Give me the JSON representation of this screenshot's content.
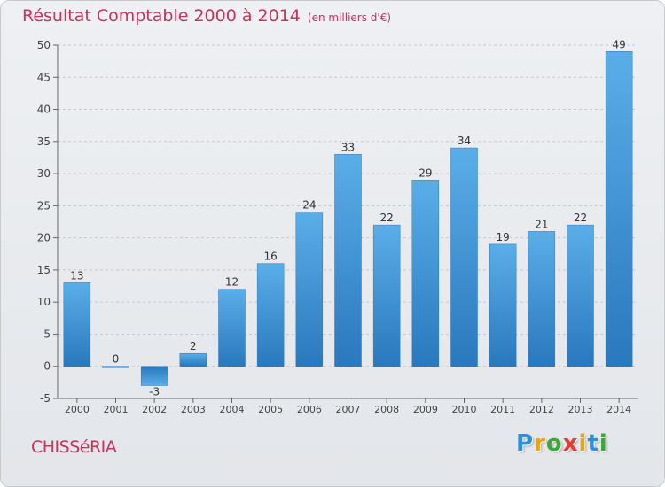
{
  "title": "Résultat Comptable 2000 à 2014",
  "unit": "(en milliers d'€)",
  "commune": "CHISSéRIA",
  "logo": {
    "letters": [
      "P",
      "r",
      "o",
      "x",
      "i",
      "t",
      "i"
    ],
    "colors": [
      "#2f8fd8",
      "#e9a31f",
      "#3aa832",
      "#e03c31",
      "#e9a31f",
      "#2f8fd8",
      "#3aa832"
    ]
  },
  "colors": {
    "bar": "#3d96d8",
    "bar_dark": "#2a78bd",
    "title": "#c7345a"
  },
  "chart_data": {
    "type": "bar",
    "title": "Résultat Comptable 2000 à 2014",
    "ylabel": "",
    "xlabel": "",
    "categories": [
      "2000",
      "2001",
      "2002",
      "2003",
      "2004",
      "2005",
      "2006",
      "2007",
      "2008",
      "2009",
      "2010",
      "2011",
      "2012",
      "2013",
      "2014"
    ],
    "values": [
      13,
      0,
      -3,
      2,
      12,
      16,
      24,
      33,
      22,
      29,
      34,
      19,
      21,
      22,
      49
    ],
    "ylim": [
      -5,
      50
    ],
    "yticks": [
      -5,
      0,
      5,
      10,
      15,
      20,
      25,
      30,
      35,
      40,
      45,
      50
    ],
    "grid": "horizontal dashed"
  }
}
